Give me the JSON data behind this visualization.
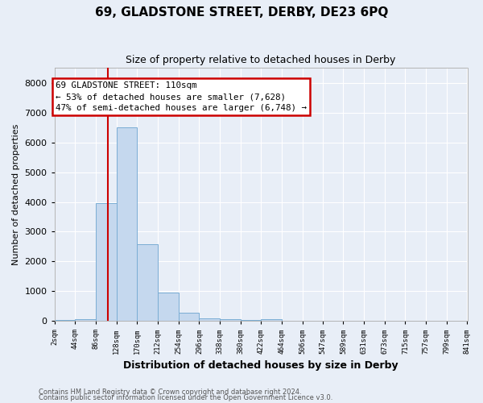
{
  "title": "69, GLADSTONE STREET, DERBY, DE23 6PQ",
  "subtitle": "Size of property relative to detached houses in Derby",
  "xlabel": "Distribution of detached houses by size in Derby",
  "ylabel": "Number of detached properties",
  "bar_color": "#c5d8ee",
  "bar_edge_color": "#7aadd4",
  "background_color": "#e8eef7",
  "grid_color": "#ffffff",
  "bins": [
    2,
    44,
    86,
    128,
    170,
    212,
    254,
    296,
    338,
    380,
    422,
    464,
    506,
    547,
    589,
    631,
    673,
    715,
    757,
    799,
    841
  ],
  "bin_labels": [
    "2sqm",
    "44sqm",
    "86sqm",
    "128sqm",
    "170sqm",
    "212sqm",
    "254sqm",
    "296sqm",
    "338sqm",
    "380sqm",
    "422sqm",
    "464sqm",
    "506sqm",
    "547sqm",
    "589sqm",
    "631sqm",
    "673sqm",
    "715sqm",
    "757sqm",
    "799sqm",
    "841sqm"
  ],
  "values": [
    20,
    50,
    3950,
    6500,
    2580,
    940,
    270,
    95,
    45,
    25,
    45,
    0,
    0,
    0,
    0,
    0,
    0,
    0,
    0,
    0,
    0
  ],
  "ylim": [
    0,
    8500
  ],
  "yticks": [
    0,
    1000,
    2000,
    3000,
    4000,
    5000,
    6000,
    7000,
    8000
  ],
  "property_line_x": 110,
  "annotation_line1": "69 GLADSTONE STREET: 110sqm",
  "annotation_line2": "← 53% of detached houses are smaller (7,628)",
  "annotation_line3": "47% of semi-detached houses are larger (6,748) →",
  "annotation_box_color": "#cc0000",
  "footnote1": "Contains HM Land Registry data © Crown copyright and database right 2024.",
  "footnote2": "Contains public sector information licensed under the Open Government Licence v3.0."
}
